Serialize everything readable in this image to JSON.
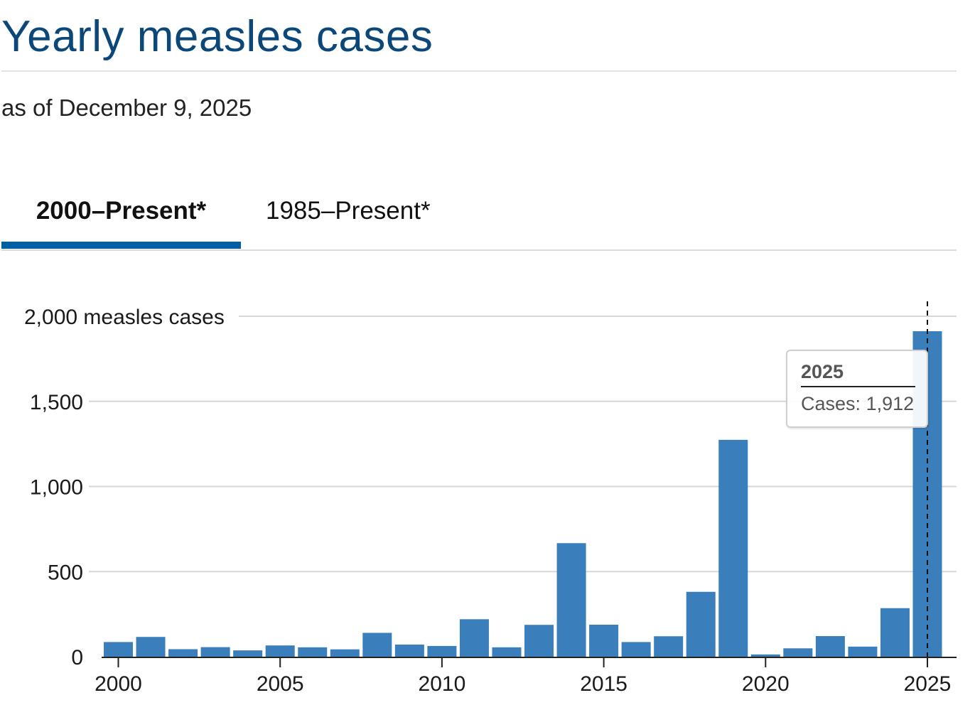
{
  "header": {
    "title": "Yearly measles cases",
    "subtitle": "as of December 9, 2025"
  },
  "tabs": [
    {
      "label": "2000–Present*",
      "active": true
    },
    {
      "label": "1985–Present*",
      "active": false
    }
  ],
  "tooltip": {
    "year": "2025",
    "label": "Cases:",
    "value": "1,912"
  },
  "colors": {
    "bar": "#3a7fbb",
    "title": "#0b4778",
    "tab_accent": "#005ea2"
  },
  "chart_data": {
    "type": "bar",
    "title": "Yearly measles cases",
    "ylabel": "measles cases",
    "ylim": [
      0,
      2000
    ],
    "yticks": [
      0,
      500,
      1000,
      1500,
      2000
    ],
    "ytick_labels": [
      "0",
      "500",
      "1,000",
      "1,500",
      "2,000 measles cases"
    ],
    "xticks": [
      2000,
      2005,
      2010,
      2015,
      2020,
      2025
    ],
    "categories": [
      2000,
      2001,
      2002,
      2003,
      2004,
      2005,
      2006,
      2007,
      2008,
      2009,
      2010,
      2011,
      2012,
      2013,
      2014,
      2015,
      2016,
      2017,
      2018,
      2019,
      2020,
      2021,
      2022,
      2023,
      2024,
      2025
    ],
    "values": [
      86,
      116,
      44,
      56,
      37,
      66,
      55,
      43,
      140,
      71,
      63,
      220,
      55,
      187,
      667,
      188,
      86,
      120,
      381,
      1274,
      13,
      49,
      121,
      59,
      285,
      1912
    ],
    "highlight": {
      "year": 2025,
      "value": 1912
    }
  }
}
